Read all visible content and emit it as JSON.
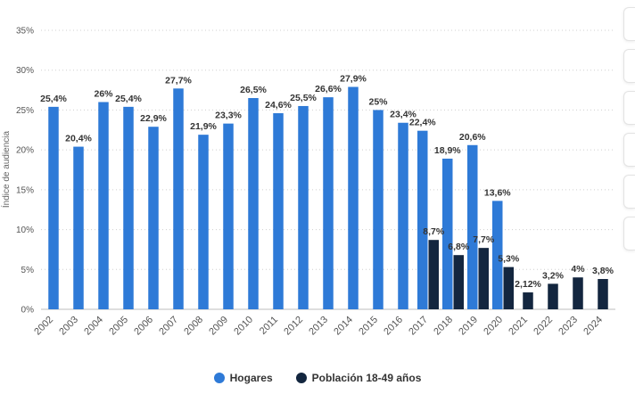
{
  "chart_data": {
    "type": "bar",
    "title": "",
    "ylabel": "Índice de audiencia",
    "xlabel": "",
    "ylim": [
      0,
      35
    ],
    "y_ticks": [
      "0%",
      "5%",
      "10%",
      "15%",
      "20%",
      "25%",
      "30%",
      "35%"
    ],
    "categories": [
      "2002",
      "2003",
      "2004",
      "2005",
      "2006",
      "2007",
      "2008",
      "2009",
      "2010",
      "2011",
      "2012",
      "2013",
      "2014",
      "2015",
      "2016",
      "2017",
      "2018",
      "2019",
      "2020",
      "2021",
      "2022",
      "2023",
      "2024"
    ],
    "series": [
      {
        "name": "Hogares",
        "color": "#2e7ad7",
        "values": [
          25.4,
          20.4,
          26,
          25.4,
          22.9,
          27.7,
          21.9,
          23.3,
          26.5,
          24.6,
          25.5,
          26.6,
          27.9,
          25,
          23.4,
          22.4,
          18.9,
          20.6,
          13.6,
          null,
          null,
          null,
          null
        ],
        "labels": [
          "25,4%",
          "20,4%",
          "26%",
          "25,4%",
          "22,9%",
          "27,7%",
          "21,9%",
          "23,3%",
          "26,5%",
          "24,6%",
          "25,5%",
          "26,6%",
          "27,9%",
          "25%",
          "23,4%",
          "22,4%",
          "18,9%",
          "20,6%",
          "13,6%",
          null,
          null,
          null,
          null
        ]
      },
      {
        "name": "Población 18-49 años",
        "color": "#13263f",
        "values": [
          null,
          null,
          null,
          null,
          null,
          null,
          null,
          null,
          null,
          null,
          null,
          null,
          null,
          null,
          null,
          8.7,
          6.8,
          7.7,
          5.3,
          2.12,
          3.2,
          4,
          3.8
        ],
        "labels": [
          null,
          null,
          null,
          null,
          null,
          null,
          null,
          null,
          null,
          null,
          null,
          null,
          null,
          null,
          null,
          "8,7%",
          "6,8%",
          "7,7%",
          "5,3%",
          "2,12%",
          "3,2%",
          "4%",
          "3,8%"
        ]
      }
    ],
    "grid": true,
    "legend": "bottom-center"
  },
  "ui": {
    "side_tabs": 6
  }
}
